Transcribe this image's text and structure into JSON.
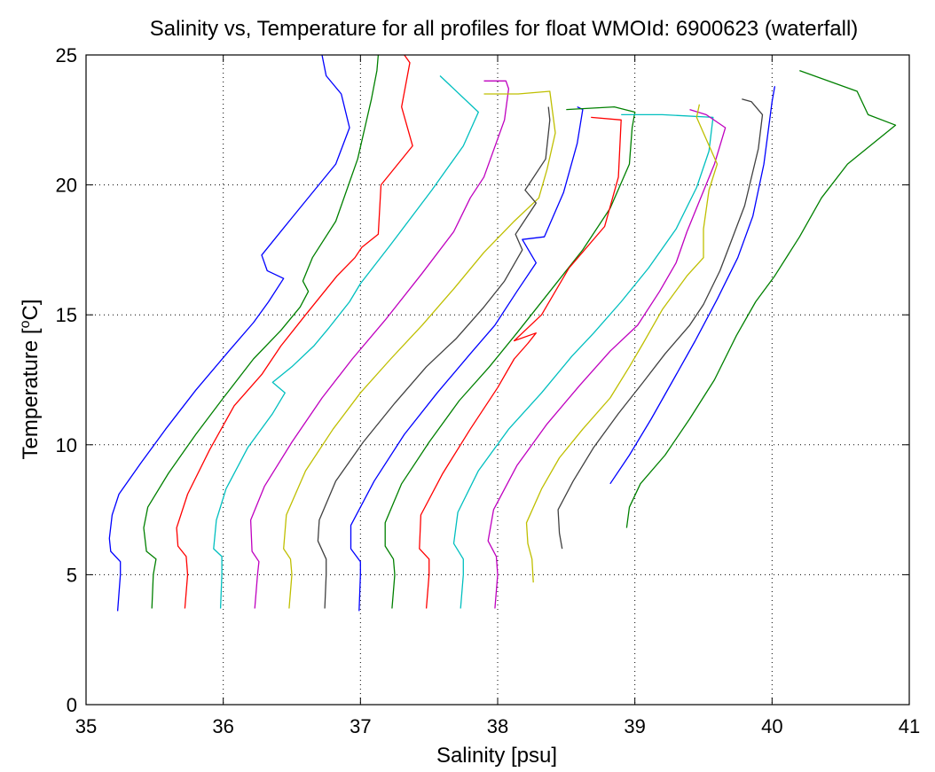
{
  "chart_data": {
    "type": "line",
    "title": "Salinity vs, Temperature for all profiles for float WMOId: 6900623 (waterfall)",
    "xlabel": "Salinity [psu]",
    "ylabel_main": "Temperature [",
    "ylabel_sup": "o",
    "ylabel_end": "C]",
    "xlim": [
      35,
      41
    ],
    "ylim": [
      0,
      25
    ],
    "grid": true,
    "x_ticks": [
      "35",
      "36",
      "37",
      "38",
      "39",
      "40",
      "41"
    ],
    "y_ticks": [
      "0",
      "5",
      "10",
      "15",
      "20",
      "25"
    ],
    "series": [
      {
        "color": "#0000ff",
        "points": [
          [
            35.23,
            3.6
          ],
          [
            35.25,
            5.0
          ],
          [
            35.25,
            5.5
          ],
          [
            35.18,
            5.9
          ],
          [
            35.17,
            6.4
          ],
          [
            35.19,
            7.3
          ],
          [
            35.24,
            8.1
          ],
          [
            35.4,
            9.3
          ],
          [
            35.58,
            10.6
          ],
          [
            35.8,
            12.1
          ],
          [
            36.04,
            13.6
          ],
          [
            36.22,
            14.7
          ],
          [
            36.33,
            15.5
          ],
          [
            36.44,
            16.4
          ],
          [
            36.32,
            16.7
          ],
          [
            36.28,
            17.3
          ],
          [
            36.48,
            18.6
          ],
          [
            36.82,
            20.8
          ],
          [
            36.92,
            22.2
          ],
          [
            36.86,
            23.5
          ],
          [
            36.75,
            24.2
          ],
          [
            36.72,
            25.0
          ]
        ]
      },
      {
        "color": "#008000",
        "points": [
          [
            35.48,
            3.7
          ],
          [
            35.49,
            5.0
          ],
          [
            35.51,
            5.6
          ],
          [
            35.44,
            5.9
          ],
          [
            35.42,
            6.8
          ],
          [
            35.45,
            7.6
          ],
          [
            35.6,
            8.9
          ],
          [
            35.8,
            10.4
          ],
          [
            36.0,
            11.8
          ],
          [
            36.22,
            13.3
          ],
          [
            36.42,
            14.4
          ],
          [
            36.56,
            15.3
          ],
          [
            36.62,
            15.9
          ],
          [
            36.58,
            16.3
          ],
          [
            36.65,
            17.2
          ],
          [
            36.82,
            18.6
          ],
          [
            36.98,
            21.0
          ],
          [
            37.08,
            23.3
          ],
          [
            37.12,
            24.4
          ],
          [
            37.13,
            25.0
          ]
        ]
      },
      {
        "color": "#ff0000",
        "points": [
          [
            35.72,
            3.7
          ],
          [
            35.74,
            5.0
          ],
          [
            35.73,
            5.7
          ],
          [
            35.67,
            6.1
          ],
          [
            35.66,
            6.8
          ],
          [
            35.74,
            8.1
          ],
          [
            35.9,
            9.8
          ],
          [
            36.08,
            11.5
          ],
          [
            36.28,
            12.7
          ],
          [
            36.42,
            13.8
          ],
          [
            36.6,
            15.0
          ],
          [
            36.83,
            16.5
          ],
          [
            36.96,
            17.2
          ],
          [
            37.01,
            17.6
          ],
          [
            37.13,
            18.1
          ],
          [
            37.15,
            20.0
          ],
          [
            37.38,
            21.5
          ],
          [
            37.3,
            23.0
          ],
          [
            37.36,
            24.7
          ],
          [
            37.32,
            25.0
          ]
        ]
      },
      {
        "color": "#00bfbf",
        "points": [
          [
            35.98,
            3.7
          ],
          [
            35.99,
            5.0
          ],
          [
            35.99,
            5.7
          ],
          [
            35.93,
            6.0
          ],
          [
            35.95,
            7.1
          ],
          [
            36.02,
            8.3
          ],
          [
            36.18,
            9.9
          ],
          [
            36.36,
            11.2
          ],
          [
            36.45,
            12.0
          ],
          [
            36.36,
            12.4
          ],
          [
            36.5,
            13.0
          ],
          [
            36.66,
            13.8
          ],
          [
            36.77,
            14.5
          ],
          [
            36.92,
            15.5
          ],
          [
            37.0,
            16.2
          ],
          [
            37.22,
            17.7
          ],
          [
            37.52,
            19.8
          ],
          [
            37.75,
            21.5
          ],
          [
            37.86,
            22.8
          ],
          [
            37.58,
            24.2
          ]
        ]
      },
      {
        "color": "#bf00bf",
        "points": [
          [
            36.23,
            3.7
          ],
          [
            36.25,
            5.0
          ],
          [
            36.26,
            5.5
          ],
          [
            36.21,
            5.9
          ],
          [
            36.2,
            7.1
          ],
          [
            36.3,
            8.4
          ],
          [
            36.5,
            10.1
          ],
          [
            36.72,
            11.8
          ],
          [
            36.94,
            13.3
          ],
          [
            37.18,
            14.8
          ],
          [
            37.45,
            16.6
          ],
          [
            37.68,
            18.2
          ],
          [
            37.8,
            19.5
          ],
          [
            37.9,
            20.3
          ],
          [
            38.05,
            22.5
          ],
          [
            38.08,
            23.7
          ],
          [
            38.06,
            24.0
          ],
          [
            37.9,
            24.0
          ]
        ]
      },
      {
        "color": "#bfbf00",
        "points": [
          [
            36.48,
            3.7
          ],
          [
            36.5,
            5.0
          ],
          [
            36.49,
            5.6
          ],
          [
            36.44,
            6.0
          ],
          [
            36.46,
            7.3
          ],
          [
            36.6,
            9.0
          ],
          [
            36.8,
            10.6
          ],
          [
            37.0,
            12.0
          ],
          [
            37.22,
            13.3
          ],
          [
            37.45,
            14.6
          ],
          [
            37.68,
            16.0
          ],
          [
            37.9,
            17.4
          ],
          [
            38.12,
            18.6
          ],
          [
            38.3,
            19.5
          ],
          [
            38.36,
            20.6
          ],
          [
            38.42,
            22.0
          ],
          [
            38.38,
            23.6
          ],
          [
            38.15,
            23.5
          ],
          [
            37.9,
            23.5
          ]
        ]
      },
      {
        "color": "#404040",
        "points": [
          [
            36.74,
            3.7
          ],
          [
            36.75,
            5.0
          ],
          [
            36.75,
            5.6
          ],
          [
            36.69,
            6.3
          ],
          [
            36.7,
            7.1
          ],
          [
            36.82,
            8.6
          ],
          [
            37.02,
            10.1
          ],
          [
            37.25,
            11.6
          ],
          [
            37.48,
            13.0
          ],
          [
            37.7,
            14.1
          ],
          [
            37.9,
            15.3
          ],
          [
            38.05,
            16.3
          ],
          [
            38.18,
            17.5
          ],
          [
            38.13,
            18.1
          ],
          [
            38.28,
            19.3
          ],
          [
            38.2,
            19.8
          ],
          [
            38.35,
            21.0
          ],
          [
            38.38,
            22.5
          ],
          [
            38.37,
            23.0
          ]
        ]
      },
      {
        "color": "#0000ff",
        "points": [
          [
            36.99,
            3.6
          ],
          [
            37.0,
            5.0
          ],
          [
            37.0,
            5.5
          ],
          [
            36.93,
            6.0
          ],
          [
            36.93,
            6.9
          ],
          [
            37.1,
            8.6
          ],
          [
            37.32,
            10.4
          ],
          [
            37.56,
            12.0
          ],
          [
            37.8,
            13.5
          ],
          [
            37.98,
            14.6
          ],
          [
            38.14,
            15.9
          ],
          [
            38.28,
            17.0
          ],
          [
            38.18,
            17.9
          ],
          [
            38.34,
            18.0
          ],
          [
            38.48,
            19.7
          ],
          [
            38.58,
            21.6
          ],
          [
            38.62,
            22.9
          ],
          [
            38.58,
            23.0
          ]
        ]
      },
      {
        "color": "#008000",
        "points": [
          [
            37.23,
            3.7
          ],
          [
            37.25,
            5.0
          ],
          [
            37.24,
            5.6
          ],
          [
            37.18,
            6.1
          ],
          [
            37.18,
            7.0
          ],
          [
            37.3,
            8.5
          ],
          [
            37.5,
            10.1
          ],
          [
            37.72,
            11.7
          ],
          [
            37.94,
            13.0
          ],
          [
            38.14,
            14.3
          ],
          [
            38.38,
            15.9
          ],
          [
            38.62,
            17.5
          ],
          [
            38.82,
            19.1
          ],
          [
            38.96,
            20.8
          ],
          [
            38.98,
            22.2
          ],
          [
            39.0,
            22.8
          ],
          [
            38.85,
            23.0
          ],
          [
            38.5,
            22.9
          ]
        ]
      },
      {
        "color": "#ff0000",
        "points": [
          [
            37.48,
            3.7
          ],
          [
            37.5,
            5.0
          ],
          [
            37.5,
            5.6
          ],
          [
            37.43,
            6.0
          ],
          [
            37.44,
            7.3
          ],
          [
            37.6,
            8.9
          ],
          [
            37.8,
            10.6
          ],
          [
            38.0,
            12.2
          ],
          [
            38.12,
            13.3
          ],
          [
            38.22,
            13.9
          ],
          [
            38.28,
            14.3
          ],
          [
            38.12,
            14.0
          ],
          [
            38.32,
            15.0
          ],
          [
            38.52,
            16.8
          ],
          [
            38.78,
            18.4
          ],
          [
            38.88,
            20.3
          ],
          [
            38.9,
            22.5
          ],
          [
            38.68,
            22.6
          ]
        ]
      },
      {
        "color": "#00bfbf",
        "points": [
          [
            37.73,
            3.7
          ],
          [
            37.75,
            5.0
          ],
          [
            37.75,
            5.6
          ],
          [
            37.68,
            6.2
          ],
          [
            37.71,
            7.4
          ],
          [
            37.86,
            9.0
          ],
          [
            38.08,
            10.6
          ],
          [
            38.32,
            12.0
          ],
          [
            38.54,
            13.4
          ],
          [
            38.7,
            14.3
          ],
          [
            38.9,
            15.5
          ],
          [
            39.1,
            16.8
          ],
          [
            39.3,
            18.3
          ],
          [
            39.45,
            19.9
          ],
          [
            39.54,
            21.3
          ],
          [
            39.57,
            22.6
          ],
          [
            39.2,
            22.7
          ],
          [
            38.9,
            22.7
          ]
        ]
      },
      {
        "color": "#bf00bf",
        "points": [
          [
            37.98,
            3.7
          ],
          [
            38.0,
            5.0
          ],
          [
            37.99,
            5.7
          ],
          [
            37.93,
            6.3
          ],
          [
            37.97,
            7.5
          ],
          [
            38.14,
            9.2
          ],
          [
            38.36,
            10.8
          ],
          [
            38.6,
            12.3
          ],
          [
            38.82,
            13.6
          ],
          [
            39.02,
            14.6
          ],
          [
            39.18,
            15.9
          ],
          [
            39.3,
            17.0
          ],
          [
            39.38,
            18.2
          ],
          [
            39.48,
            19.5
          ],
          [
            39.58,
            20.8
          ],
          [
            39.66,
            22.2
          ],
          [
            39.52,
            22.7
          ],
          [
            39.4,
            22.9
          ]
        ]
      },
      {
        "color": "#bfbf00",
        "points": [
          [
            38.26,
            4.7
          ],
          [
            38.25,
            5.6
          ],
          [
            38.22,
            6.2
          ],
          [
            38.21,
            7.0
          ],
          [
            38.32,
            8.3
          ],
          [
            38.45,
            9.5
          ],
          [
            38.62,
            10.6
          ],
          [
            38.82,
            11.8
          ],
          [
            38.96,
            13.0
          ],
          [
            39.06,
            13.9
          ],
          [
            39.2,
            15.2
          ],
          [
            39.38,
            16.5
          ],
          [
            39.5,
            17.2
          ],
          [
            39.5,
            18.3
          ],
          [
            39.54,
            19.8
          ],
          [
            39.6,
            20.8
          ],
          [
            39.5,
            22.0
          ],
          [
            39.45,
            22.6
          ],
          [
            39.47,
            23.1
          ]
        ]
      },
      {
        "color": "#404040",
        "points": [
          [
            38.47,
            6.0
          ],
          [
            38.45,
            6.6
          ],
          [
            38.44,
            7.5
          ],
          [
            38.55,
            8.6
          ],
          [
            38.7,
            9.9
          ],
          [
            38.88,
            11.2
          ],
          [
            39.06,
            12.4
          ],
          [
            39.22,
            13.5
          ],
          [
            39.4,
            14.6
          ],
          [
            39.5,
            15.4
          ],
          [
            39.62,
            16.7
          ],
          [
            39.7,
            17.8
          ],
          [
            39.8,
            19.2
          ],
          [
            39.9,
            21.4
          ],
          [
            39.93,
            22.7
          ],
          [
            39.85,
            23.2
          ],
          [
            39.78,
            23.3
          ]
        ]
      },
      {
        "color": "#0000ff",
        "points": [
          [
            38.82,
            8.5
          ],
          [
            38.96,
            9.6
          ],
          [
            39.12,
            11.0
          ],
          [
            39.28,
            12.5
          ],
          [
            39.44,
            14.0
          ],
          [
            39.6,
            15.6
          ],
          [
            39.75,
            17.2
          ],
          [
            39.86,
            18.8
          ],
          [
            39.94,
            20.8
          ],
          [
            39.97,
            22.0
          ],
          [
            40.0,
            23.2
          ],
          [
            40.02,
            23.8
          ]
        ]
      },
      {
        "color": "#008000",
        "points": [
          [
            38.94,
            6.8
          ],
          [
            38.96,
            7.6
          ],
          [
            39.04,
            8.5
          ],
          [
            39.22,
            9.6
          ],
          [
            39.4,
            11.0
          ],
          [
            39.58,
            12.5
          ],
          [
            39.74,
            14.2
          ],
          [
            39.88,
            15.5
          ],
          [
            40.02,
            16.5
          ],
          [
            40.2,
            18.0
          ],
          [
            40.36,
            19.5
          ],
          [
            40.55,
            20.8
          ],
          [
            40.9,
            22.3
          ],
          [
            40.7,
            22.7
          ],
          [
            40.62,
            23.6
          ],
          [
            40.2,
            24.4
          ]
        ]
      }
    ]
  }
}
